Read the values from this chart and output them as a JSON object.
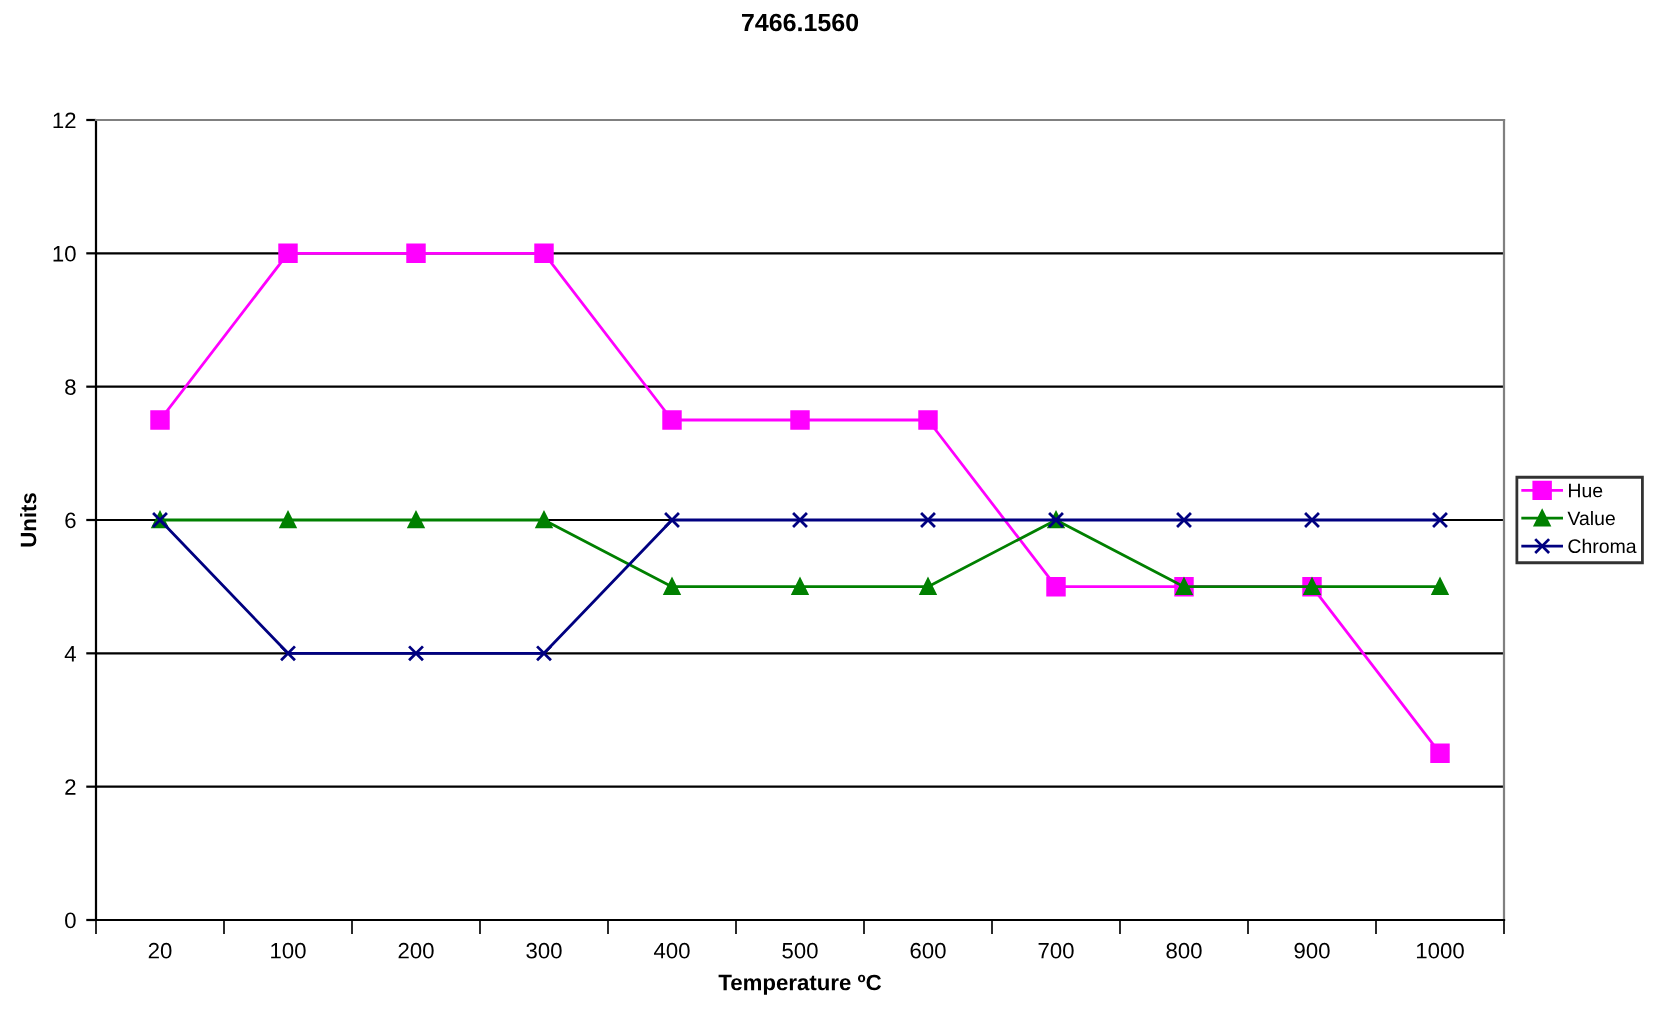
{
  "chart_data": {
    "type": "line",
    "title": "7466.1560",
    "xlabel": "Temperature ºC",
    "ylabel": "Units",
    "categories": [
      "20",
      "100",
      "200",
      "300",
      "400",
      "500",
      "600",
      "700",
      "800",
      "900",
      "1000"
    ],
    "series": [
      {
        "name": "Hue",
        "color": "#ff00ff",
        "marker": "square",
        "values": [
          7.5,
          10,
          10,
          10,
          7.5,
          7.5,
          7.5,
          5,
          5,
          5,
          2.5
        ]
      },
      {
        "name": "Value",
        "color": "#008000",
        "marker": "triangle",
        "values": [
          6,
          6,
          6,
          6,
          5,
          5,
          5,
          6,
          5,
          5,
          5
        ]
      },
      {
        "name": "Chroma",
        "color": "#000080",
        "marker": "cross",
        "values": [
          6,
          4,
          4,
          4,
          6,
          6,
          6,
          6,
          6,
          6,
          6
        ]
      }
    ],
    "ylim": [
      0,
      12
    ],
    "yticks": [
      0,
      2,
      4,
      6,
      8,
      10,
      12
    ],
    "grid": "y",
    "legend": "right"
  }
}
